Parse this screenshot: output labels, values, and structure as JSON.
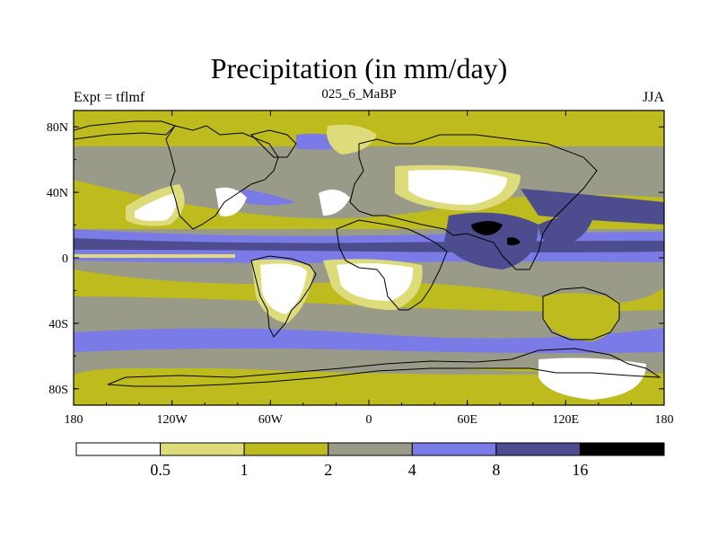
{
  "title": "Precipitation (in mm/day)",
  "left_label": "Expt = tflmf",
  "center_label": "025_6_MaBP",
  "right_label": "JJA",
  "axes": {
    "x_ticks": [
      {
        "lon": -180,
        "label": "180"
      },
      {
        "lon": -120,
        "label": "120W"
      },
      {
        "lon": -60,
        "label": "60W"
      },
      {
        "lon": 0,
        "label": "0"
      },
      {
        "lon": 60,
        "label": "60E"
      },
      {
        "lon": 120,
        "label": "120E"
      },
      {
        "lon": 180,
        "label": "180"
      }
    ],
    "y_ticks": [
      {
        "lat": 80,
        "label": "80N"
      },
      {
        "lat": 40,
        "label": "40N"
      },
      {
        "lat": 0,
        "label": "0"
      },
      {
        "lat": -40,
        "label": "40S"
      },
      {
        "lat": -80,
        "label": "80S"
      }
    ],
    "lon_range": [
      -180,
      180
    ],
    "lat_range": [
      -90,
      90
    ]
  },
  "colorbar": {
    "levels": [
      "0.5",
      "1",
      "2",
      "4",
      "8",
      "16"
    ],
    "colors": [
      "#ffffff",
      "#dedc7a",
      "#bdbb1e",
      "#9a9a88",
      "#7b7be8",
      "#4c4c8e",
      "#000000"
    ]
  }
}
